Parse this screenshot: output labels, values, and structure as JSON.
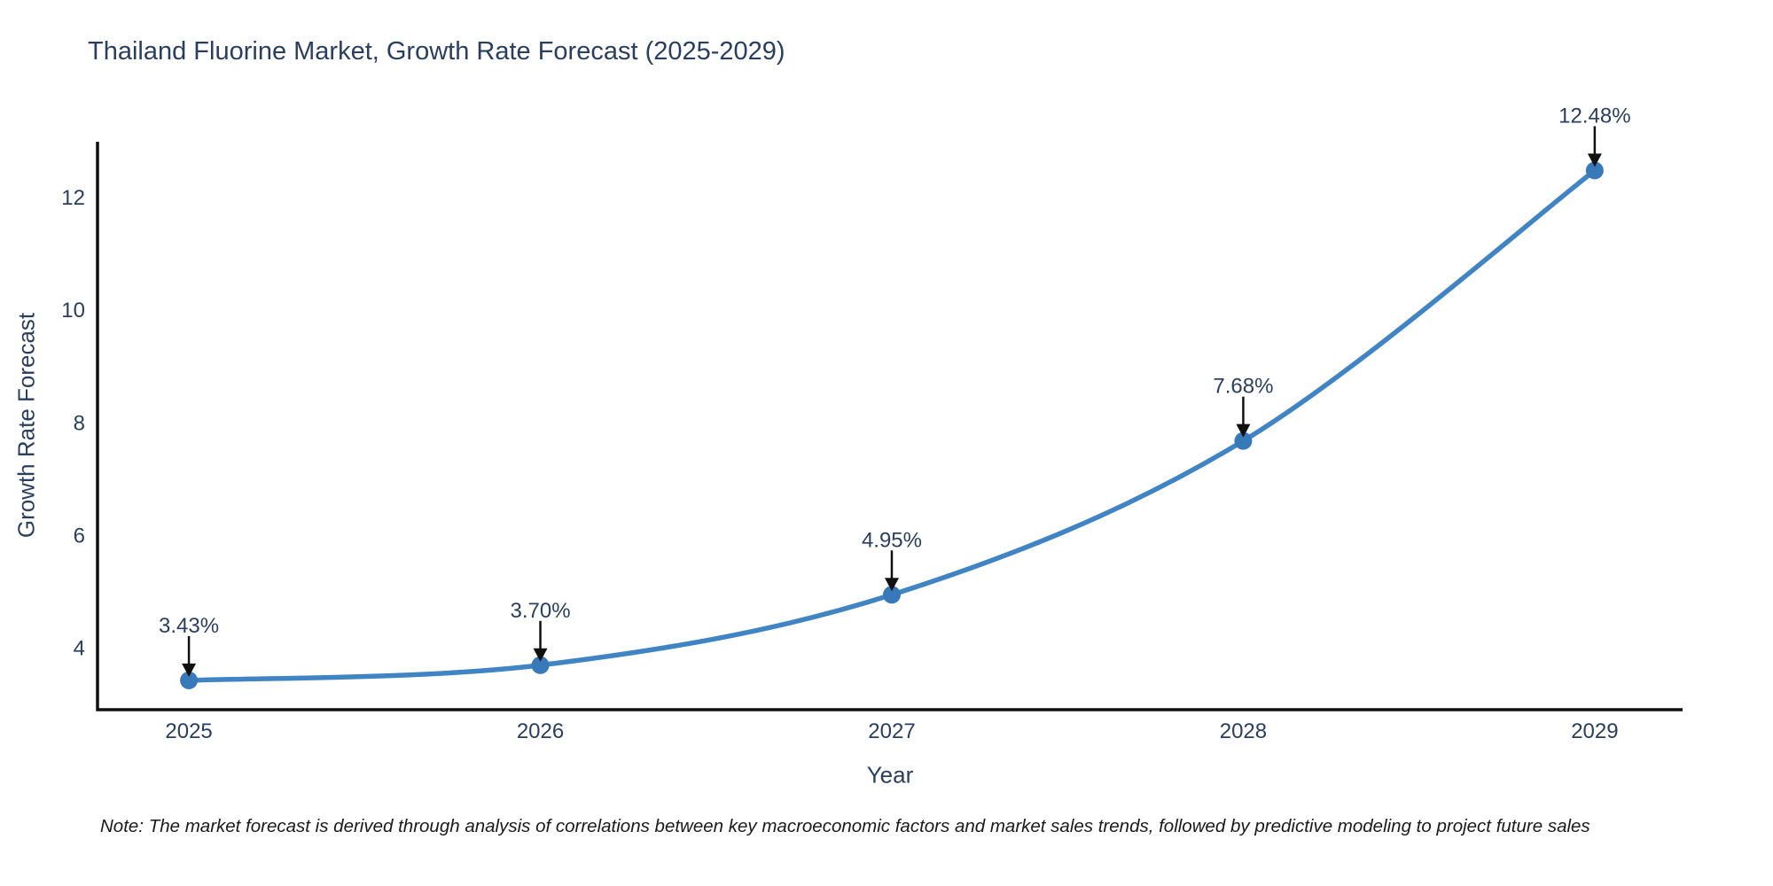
{
  "title": "Thailand Fluorine Market, Growth Rate Forecast (2025-2029)",
  "note": "Note: The market forecast is derived through analysis of correlations between key macroeconomic factors and market sales trends, followed by predictive modeling to project future sales",
  "chart_data": {
    "type": "line",
    "title": "Thailand Fluorine Market, Growth Rate Forecast (2025-2029)",
    "xlabel": "Year",
    "ylabel": "Growth Rate Forecast",
    "x": [
      2025,
      2026,
      2027,
      2028,
      2029
    ],
    "values": [
      3.43,
      3.7,
      4.95,
      7.68,
      12.48
    ],
    "point_labels": [
      "3.43%",
      "3.70%",
      "4.95%",
      "7.68%",
      "12.48%"
    ],
    "xticks": [
      "2025",
      "2026",
      "2027",
      "2028",
      "2029"
    ],
    "yticks": [
      4,
      6,
      8,
      10,
      12
    ],
    "xlim": [
      2024.74,
      2029.25
    ],
    "ylim": [
      2.91,
      12.99
    ],
    "grid": false,
    "legend": "none",
    "line_shape": "spline",
    "colors": {
      "line": "#4184c4",
      "marker": "#3879ba",
      "arrow": "#111111",
      "axis": "#111111",
      "chart_text": "#2a3f5f",
      "note_text": "#1a1a1a"
    }
  }
}
